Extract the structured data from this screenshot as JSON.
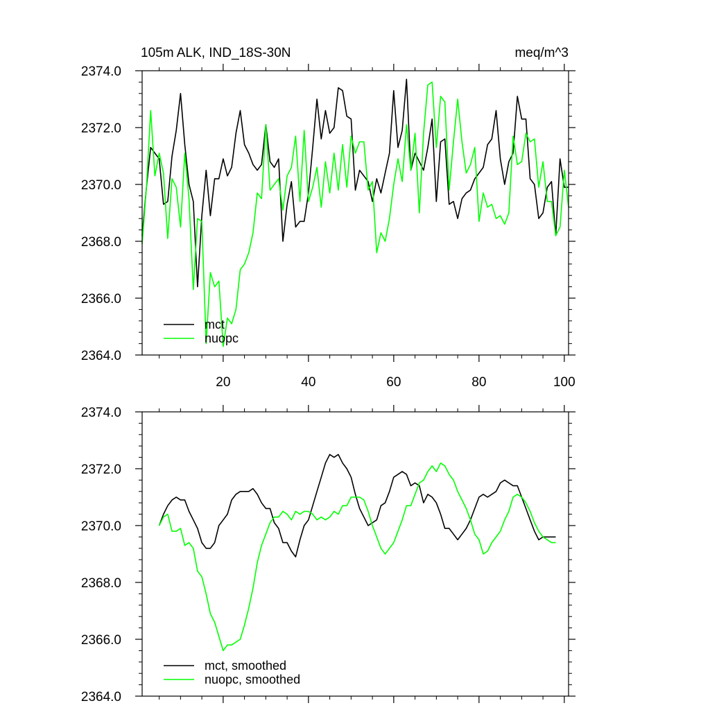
{
  "chart_data": [
    {
      "type": "line",
      "title_left": "105m ALK, IND_18S-30N",
      "title_right": "meq/m^3",
      "xlabel": "",
      "ylabel": "",
      "xlim": [
        1,
        101
      ],
      "ylim": [
        2364,
        2374
      ],
      "x_ticks": [
        20,
        40,
        60,
        80,
        100
      ],
      "x_tick_labels": [
        "20",
        "40",
        "60",
        "80",
        "100"
      ],
      "y_ticks": [
        2364,
        2366,
        2368,
        2370,
        2372,
        2374
      ],
      "y_tick_labels": [
        "2364.0",
        "2366.0",
        "2368.0",
        "2370.0",
        "2372.0",
        "2374.0"
      ],
      "legend_position": "bottom-left",
      "series": [
        {
          "name": "mct",
          "color": "#000000",
          "x": [
            1,
            2,
            3,
            4,
            5,
            6,
            7,
            8,
            9,
            10,
            11,
            12,
            13,
            14,
            15,
            16,
            17,
            18,
            19,
            20,
            21,
            22,
            23,
            24,
            25,
            26,
            27,
            28,
            29,
            30,
            31,
            32,
            33,
            34,
            35,
            36,
            37,
            38,
            39,
            40,
            41,
            42,
            43,
            44,
            45,
            46,
            47,
            48,
            49,
            50,
            51,
            52,
            53,
            54,
            55,
            56,
            57,
            58,
            59,
            60,
            61,
            62,
            63,
            64,
            65,
            66,
            67,
            68,
            69,
            70,
            71,
            72,
            73,
            74,
            75,
            76,
            77,
            78,
            79,
            80,
            81,
            82,
            83,
            84,
            85,
            86,
            87,
            88,
            89,
            90,
            91,
            92,
            93,
            94,
            95,
            96,
            97,
            98,
            99,
            100,
            101
          ],
          "values": [
            2368.2,
            2369.9,
            2371.3,
            2371.1,
            2370.9,
            2369.3,
            2369.4,
            2371.0,
            2371.9,
            2373.2,
            2371.4,
            2370.0,
            2369.4,
            2366.4,
            2368.9,
            2370.5,
            2368.9,
            2370.2,
            2370.2,
            2370.9,
            2370.3,
            2370.6,
            2371.8,
            2372.6,
            2371.4,
            2371.1,
            2370.7,
            2370.5,
            2370.7,
            2372.1,
            2370.8,
            2370.6,
            2370.9,
            2368.0,
            2369.3,
            2370.1,
            2368.5,
            2368.7,
            2368.7,
            2369.7,
            2371.3,
            2373.0,
            2371.6,
            2372.6,
            2371.8,
            2372.0,
            2373.4,
            2373.3,
            2372.4,
            2372.3,
            2369.8,
            2370.5,
            2370.3,
            2370.1,
            2369.4,
            2370.2,
            2369.7,
            2370.4,
            2371.1,
            2373.3,
            2371.3,
            2371.9,
            2373.7,
            2370.5,
            2371.1,
            2370.8,
            2370.5,
            2371.3,
            2372.3,
            2369.4,
            2371.5,
            2371.6,
            2369.3,
            2369.4,
            2368.8,
            2369.5,
            2369.7,
            2369.8,
            2370.2,
            2370.4,
            2370.6,
            2371.4,
            2371.6,
            2372.6,
            2370.9,
            2370.0,
            2370.8,
            2371.1,
            2373.1,
            2372.3,
            2372.3,
            2370.2,
            2370.0,
            2368.8,
            2369.0,
            2369.9,
            2370.1,
            2368.2,
            2370.9,
            2369.9,
            2369.9
          ]
        },
        {
          "name": "nuopc",
          "color": "#00ff00",
          "x": [
            1,
            2,
            3,
            4,
            5,
            6,
            7,
            8,
            9,
            10,
            11,
            12,
            13,
            14,
            15,
            16,
            17,
            18,
            19,
            20,
            21,
            22,
            23,
            24,
            25,
            26,
            27,
            28,
            29,
            30,
            31,
            32,
            33,
            34,
            35,
            36,
            37,
            38,
            39,
            40,
            41,
            42,
            43,
            44,
            45,
            46,
            47,
            48,
            49,
            50,
            51,
            52,
            53,
            54,
            55,
            56,
            57,
            58,
            59,
            60,
            61,
            62,
            63,
            64,
            65,
            66,
            67,
            68,
            69,
            70,
            71,
            72,
            73,
            74,
            75,
            76,
            77,
            78,
            79,
            80,
            81,
            82,
            83,
            84,
            85,
            86,
            87,
            88,
            89,
            90,
            91,
            92,
            93,
            94,
            95,
            96,
            97,
            98,
            99,
            100,
            101
          ],
          "values": [
            2367.9,
            2369.9,
            2372.6,
            2370.3,
            2371.1,
            2370.4,
            2368.1,
            2370.2,
            2369.9,
            2368.5,
            2371.1,
            2369.5,
            2366.3,
            2368.8,
            2368.7,
            2364.4,
            2366.9,
            2366.4,
            2366.6,
            2364.3,
            2365.3,
            2365.1,
            2365.6,
            2367.0,
            2367.2,
            2367.6,
            2368.3,
            2369.7,
            2369.5,
            2372.1,
            2369.8,
            2370.0,
            2370.2,
            2369.1,
            2370.3,
            2370.6,
            2371.7,
            2369.4,
            2371.9,
            2369.4,
            2369.9,
            2370.6,
            2369.2,
            2370.8,
            2369.7,
            2371.1,
            2369.8,
            2371.4,
            2369.9,
            2371.7,
            2371.1,
            2371.5,
            2371.5,
            2369.8,
            2370.1,
            2367.6,
            2368.3,
            2368.0,
            2368.8,
            2370.0,
            2370.9,
            2370.1,
            2372.1,
            2370.5,
            2371.8,
            2369.0,
            2371.8,
            2373.5,
            2373.6,
            2371.3,
            2373.1,
            2372.9,
            2369.8,
            2371.5,
            2373.0,
            2371.5,
            2370.4,
            2370.7,
            2371.3,
            2368.7,
            2369.7,
            2369.2,
            2369.3,
            2368.8,
            2368.9,
            2368.6,
            2369.0,
            2371.7,
            2370.7,
            2370.8,
            2371.8,
            2371.5,
            2371.6,
            2369.9,
            2370.8,
            2369.4,
            2369.4,
            2368.2,
            2368.5,
            2370.5,
            2369.2
          ]
        }
      ]
    },
    {
      "type": "line",
      "title_left": "",
      "title_right": "",
      "xlabel": "",
      "ylabel": "",
      "xlim": [
        1,
        101
      ],
      "ylim": [
        2364,
        2374
      ],
      "x_ticks": [
        20,
        40,
        60,
        80,
        100
      ],
      "x_tick_labels": [],
      "y_ticks": [
        2364,
        2366,
        2368,
        2370,
        2372,
        2374
      ],
      "y_tick_labels": [
        "2364.0",
        "2366.0",
        "2368.0",
        "2370.0",
        "2372.0",
        "2374.0"
      ],
      "legend_position": "bottom-left",
      "series": [
        {
          "name": "mct, smoothed",
          "color": "#000000",
          "x": [
            5,
            6,
            7,
            8,
            9,
            10,
            11,
            12,
            13,
            14,
            15,
            16,
            17,
            18,
            19,
            20,
            21,
            22,
            23,
            24,
            25,
            26,
            27,
            28,
            29,
            30,
            31,
            32,
            33,
            34,
            35,
            36,
            37,
            38,
            39,
            40,
            41,
            42,
            43,
            44,
            45,
            46,
            47,
            48,
            49,
            50,
            51,
            52,
            53,
            54,
            55,
            56,
            57,
            58,
            59,
            60,
            61,
            62,
            63,
            64,
            65,
            66,
            67,
            68,
            69,
            70,
            71,
            72,
            73,
            74,
            75,
            76,
            77,
            78,
            79,
            80,
            81,
            82,
            83,
            84,
            85,
            86,
            87,
            88,
            89,
            90,
            91,
            92,
            93,
            94,
            95,
            96,
            97,
            98
          ],
          "values": [
            2370.0,
            2370.4,
            2370.7,
            2370.9,
            2371.0,
            2370.9,
            2370.9,
            2370.5,
            2370.2,
            2369.9,
            2369.4,
            2369.2,
            2369.2,
            2369.4,
            2370.0,
            2370.2,
            2370.4,
            2370.9,
            2371.1,
            2371.2,
            2371.2,
            2371.2,
            2371.3,
            2371.1,
            2370.8,
            2370.6,
            2370.6,
            2370.1,
            2369.9,
            2369.4,
            2369.4,
            2369.1,
            2368.9,
            2369.5,
            2370.0,
            2370.2,
            2370.7,
            2371.2,
            2371.7,
            2372.2,
            2372.5,
            2372.4,
            2372.5,
            2372.2,
            2372.0,
            2371.7,
            2371.1,
            2370.6,
            2370.3,
            2370.0,
            2370.1,
            2370.2,
            2370.7,
            2370.8,
            2371.2,
            2371.7,
            2371.8,
            2371.9,
            2371.8,
            2371.4,
            2371.5,
            2371.4,
            2370.8,
            2371.1,
            2371.0,
            2370.8,
            2370.4,
            2369.9,
            2369.9,
            2369.7,
            2369.5,
            2369.7,
            2369.9,
            2370.2,
            2370.6,
            2371.0,
            2371.1,
            2371.0,
            2371.1,
            2371.2,
            2371.5,
            2371.6,
            2371.5,
            2371.4,
            2371.4,
            2371.0,
            2370.6,
            2370.2,
            2369.8,
            2369.5,
            2369.6,
            2369.6,
            2369.6,
            2369.6
          ]
        },
        {
          "name": "nuopc, smoothed",
          "color": "#00ff00",
          "x": [
            5,
            6,
            7,
            8,
            9,
            10,
            11,
            12,
            13,
            14,
            15,
            16,
            17,
            18,
            19,
            20,
            21,
            22,
            23,
            24,
            25,
            26,
            27,
            28,
            29,
            30,
            31,
            32,
            33,
            34,
            35,
            36,
            37,
            38,
            39,
            40,
            41,
            42,
            43,
            44,
            45,
            46,
            47,
            48,
            49,
            50,
            51,
            52,
            53,
            54,
            55,
            56,
            57,
            58,
            59,
            60,
            61,
            62,
            63,
            64,
            65,
            66,
            67,
            68,
            69,
            70,
            71,
            72,
            73,
            74,
            75,
            76,
            77,
            78,
            79,
            80,
            81,
            82,
            83,
            84,
            85,
            86,
            87,
            88,
            89,
            90,
            91,
            92,
            93,
            94,
            95,
            96,
            97,
            98
          ],
          "values": [
            2370.0,
            2370.3,
            2370.4,
            2369.8,
            2369.8,
            2369.9,
            2369.3,
            2369.4,
            2369.2,
            2368.4,
            2368.2,
            2367.6,
            2366.9,
            2366.6,
            2366.1,
            2365.6,
            2365.8,
            2365.8,
            2365.9,
            2366.0,
            2366.5,
            2367.1,
            2367.8,
            2368.7,
            2369.3,
            2369.7,
            2370.1,
            2370.3,
            2370.3,
            2370.5,
            2370.4,
            2370.2,
            2370.5,
            2370.4,
            2370.5,
            2370.5,
            2370.4,
            2370.2,
            2370.3,
            2370.2,
            2370.3,
            2370.5,
            2370.4,
            2370.7,
            2370.7,
            2371.0,
            2371.0,
            2371.0,
            2370.9,
            2370.5,
            2370.0,
            2369.6,
            2369.2,
            2369.0,
            2369.2,
            2369.4,
            2369.8,
            2370.2,
            2370.7,
            2370.7,
            2371.1,
            2371.5,
            2371.6,
            2371.9,
            2372.1,
            2371.9,
            2372.2,
            2372.1,
            2371.8,
            2371.6,
            2371.2,
            2370.9,
            2370.6,
            2370.2,
            2369.7,
            2369.5,
            2369.0,
            2369.1,
            2369.4,
            2369.6,
            2369.8,
            2370.2,
            2370.5,
            2371.0,
            2371.1,
            2371.0,
            2370.8,
            2370.5,
            2370.1,
            2369.8,
            2369.6,
            2369.5,
            2369.4,
            2369.4
          ]
        }
      ]
    }
  ]
}
